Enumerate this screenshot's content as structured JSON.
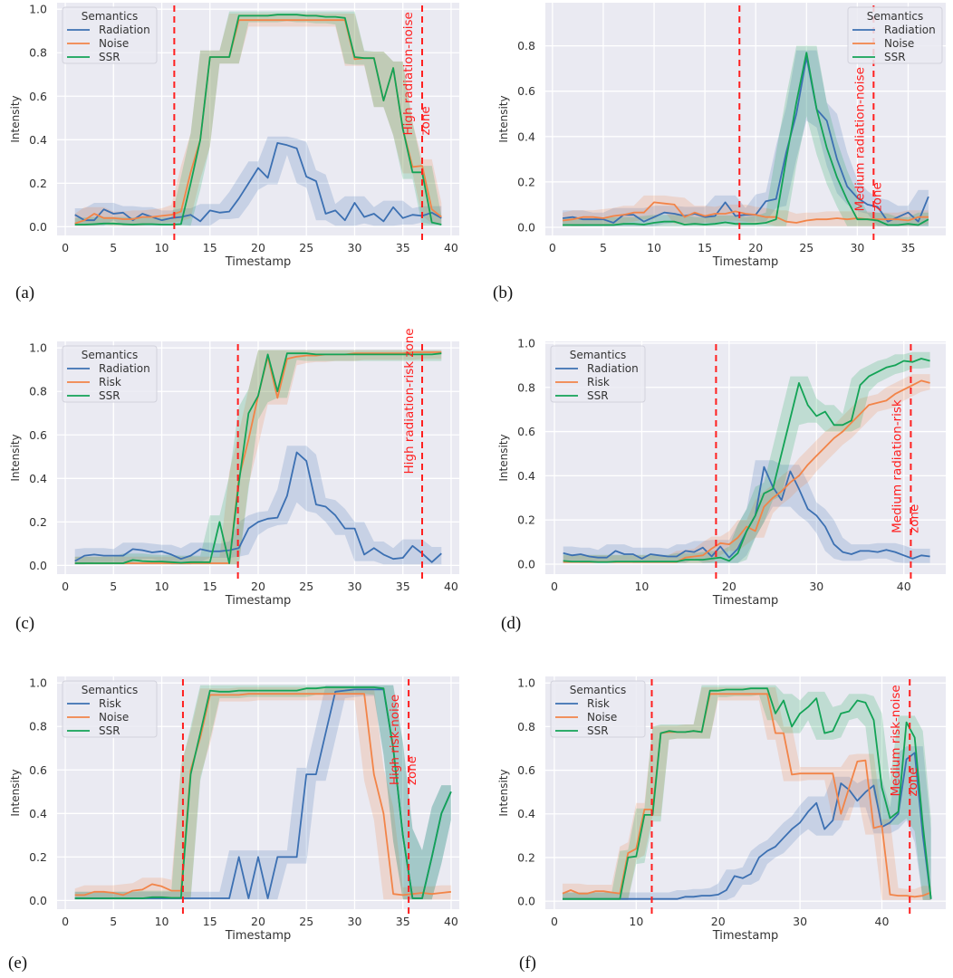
{
  "chart_data": [
    {
      "type": "line",
      "caption": "(a)",
      "xlabel": "Timestamp",
      "ylabel": "Intensity",
      "legend_title": "Semantics",
      "legend_position": "top-left",
      "xlim": [
        -0.85,
        40.85
      ],
      "ylim": [
        -0.04,
        1.03
      ],
      "xticks": [
        0,
        5,
        10,
        15,
        20,
        25,
        30,
        35,
        40
      ],
      "yticks": [
        "0.0",
        "0.2",
        "0.4",
        "0.6",
        "0.8",
        "1.0"
      ],
      "grid": true,
      "vlines": [
        11.3,
        37
      ],
      "zone_label": [
        "High radiation-noise",
        "zone"
      ],
      "zone_label_y": 0.42,
      "x_start": 1,
      "series": [
        {
          "name": "Radiation",
          "values": [
            0.055,
            0.03,
            0.03,
            0.08,
            0.06,
            0.065,
            0.03,
            0.06,
            0.045,
            0.03,
            0.04,
            0.045,
            0.055,
            0.025,
            0.075,
            0.065,
            0.07,
            0.13,
            0.2,
            0.27,
            0.225,
            0.385,
            0.375,
            0.36,
            0.23,
            0.21,
            0.06,
            0.075,
            0.03,
            0.11,
            0.045,
            0.06,
            0.025,
            0.09,
            0.04,
            0.055,
            0.05,
            0.065,
            0.04
          ]
        },
        {
          "name": "Noise",
          "values": [
            0.015,
            0.03,
            0.06,
            0.04,
            0.04,
            0.035,
            0.035,
            0.045,
            0.045,
            0.05,
            0.055,
            0.07,
            0.25,
            0.4,
            0.78,
            0.78,
            0.78,
            0.95,
            0.95,
            0.95,
            0.95,
            0.95,
            0.95,
            0.95,
            0.95,
            0.95,
            0.95,
            0.95,
            0.95,
            0.77,
            0.775,
            0.775,
            0.58,
            0.73,
            0.45,
            0.275,
            0.28,
            0.08,
            0.045
          ]
        },
        {
          "name": "SSR",
          "values": [
            0.01,
            0.01,
            0.012,
            0.015,
            0.015,
            0.012,
            0.01,
            0.012,
            0.012,
            0.01,
            0.01,
            0.012,
            0.2,
            0.4,
            0.78,
            0.78,
            0.78,
            0.97,
            0.97,
            0.97,
            0.97,
            0.975,
            0.975,
            0.975,
            0.97,
            0.97,
            0.965,
            0.965,
            0.96,
            0.78,
            0.775,
            0.775,
            0.58,
            0.73,
            0.45,
            0.25,
            0.25,
            0.02,
            0.01
          ]
        }
      ]
    },
    {
      "type": "line",
      "caption": "(b)",
      "xlabel": "Timestamp",
      "ylabel": "Intensity",
      "legend_title": "Semantics",
      "legend_position": "top-right",
      "xlim": [
        -0.7,
        38.7
      ],
      "ylim": [
        -0.036,
        0.99
      ],
      "xticks": [
        0,
        5,
        10,
        15,
        20,
        25,
        30,
        35
      ],
      "yticks": [
        "0.0",
        "0.2",
        "0.4",
        "0.6",
        "0.8"
      ],
      "grid": true,
      "vlines": [
        18.4,
        31.6
      ],
      "zone_label": [
        "Medium radiation-noise",
        "zone"
      ],
      "zone_label_y": 0.07,
      "x_start": 1,
      "series": [
        {
          "name": "Radiation",
          "values": [
            0.04,
            0.045,
            0.035,
            0.035,
            0.035,
            0.02,
            0.055,
            0.055,
            0.025,
            0.045,
            0.065,
            0.06,
            0.05,
            0.06,
            0.045,
            0.05,
            0.11,
            0.05,
            0.055,
            0.055,
            0.115,
            0.125,
            0.33,
            0.5,
            0.75,
            0.52,
            0.47,
            0.3,
            0.18,
            0.13,
            0.1,
            0.09,
            0.025,
            0.045,
            0.065,
            0.025,
            0.135
          ]
        },
        {
          "name": "Noise",
          "values": [
            0.03,
            0.035,
            0.045,
            0.045,
            0.04,
            0.05,
            0.055,
            0.065,
            0.065,
            0.11,
            0.105,
            0.1,
            0.045,
            0.065,
            0.05,
            0.06,
            0.06,
            0.07,
            0.06,
            0.055,
            0.045,
            0.045,
            0.025,
            0.02,
            0.03,
            0.035,
            0.035,
            0.04,
            0.035,
            0.04,
            0.035,
            0.035,
            0.035,
            0.035,
            0.03,
            0.045,
            0.045
          ]
        },
        {
          "name": "SSR",
          "values": [
            0.01,
            0.01,
            0.01,
            0.01,
            0.01,
            0.01,
            0.015,
            0.015,
            0.012,
            0.02,
            0.025,
            0.025,
            0.012,
            0.015,
            0.012,
            0.015,
            0.022,
            0.015,
            0.015,
            0.015,
            0.02,
            0.035,
            0.3,
            0.55,
            0.77,
            0.52,
            0.35,
            0.22,
            0.12,
            0.035,
            0.035,
            0.03,
            0.01,
            0.01,
            0.015,
            0.01,
            0.035
          ]
        }
      ]
    },
    {
      "type": "line",
      "caption": "(c)",
      "xlabel": "Timestamp",
      "ylabel": "Intensity",
      "legend_title": "Semantics",
      "legend_position": "top-left",
      "xlim": [
        -0.85,
        40.85
      ],
      "ylim": [
        -0.04,
        1.03
      ],
      "xticks": [
        0,
        5,
        10,
        15,
        20,
        25,
        30,
        35,
        40
      ],
      "yticks": [
        "0.0",
        "0.2",
        "0.4",
        "0.6",
        "0.8",
        "1.0"
      ],
      "grid": true,
      "vlines": [
        17.9,
        37
      ],
      "zone_label": [
        "High radiation-risk zone"
      ],
      "zone_label_y": 0.42,
      "x_start": 1,
      "series": [
        {
          "name": "Radiation",
          "values": [
            0.02,
            0.045,
            0.05,
            0.045,
            0.045,
            0.045,
            0.075,
            0.07,
            0.06,
            0.065,
            0.05,
            0.03,
            0.045,
            0.075,
            0.065,
            0.065,
            0.07,
            0.08,
            0.17,
            0.2,
            0.215,
            0.22,
            0.32,
            0.52,
            0.48,
            0.28,
            0.27,
            0.23,
            0.17,
            0.17,
            0.05,
            0.08,
            0.05,
            0.03,
            0.035,
            0.09,
            0.055,
            0.015,
            0.055
          ]
        },
        {
          "name": "Risk",
          "values": [
            0.01,
            0.01,
            0.01,
            0.01,
            0.01,
            0.01,
            0.01,
            0.01,
            0.01,
            0.01,
            0.01,
            0.01,
            0.01,
            0.01,
            0.01,
            0.01,
            0.01,
            0.4,
            0.58,
            0.78,
            0.96,
            0.77,
            0.95,
            0.96,
            0.965,
            0.965,
            0.97,
            0.97,
            0.97,
            0.975,
            0.975,
            0.975,
            0.975,
            0.975,
            0.975,
            0.98,
            0.98,
            0.98,
            0.98
          ]
        },
        {
          "name": "SSR",
          "values": [
            0.01,
            0.01,
            0.01,
            0.01,
            0.01,
            0.01,
            0.025,
            0.02,
            0.018,
            0.018,
            0.015,
            0.012,
            0.015,
            0.015,
            0.015,
            0.2,
            0.01,
            0.38,
            0.7,
            0.78,
            0.97,
            0.8,
            0.975,
            0.975,
            0.975,
            0.97,
            0.97,
            0.97,
            0.97,
            0.97,
            0.97,
            0.97,
            0.97,
            0.97,
            0.97,
            0.97,
            0.97,
            0.97,
            0.975
          ]
        }
      ]
    },
    {
      "type": "line",
      "caption": "(d)",
      "xlabel": "Timestamp",
      "ylabel": "Intensity",
      "legend_title": "Semantics",
      "legend_position": "top-left",
      "xlim": [
        -1.04,
        44.8
      ],
      "ylim": [
        -0.045,
        1.008
      ],
      "xticks": [
        0,
        10,
        20,
        30,
        40
      ],
      "yticks": [
        "0.0",
        "0.2",
        "0.4",
        "0.6",
        "0.8",
        "1.0"
      ],
      "grid": true,
      "vlines": [
        18.5,
        40.8
      ],
      "zone_label": [
        "Medium radiation-risk",
        "zone"
      ],
      "zone_label_y": 0.14,
      "x_start": 1,
      "series": [
        {
          "name": "Radiation",
          "values": [
            0.05,
            0.04,
            0.045,
            0.035,
            0.03,
            0.03,
            0.06,
            0.045,
            0.045,
            0.025,
            0.045,
            0.04,
            0.035,
            0.035,
            0.06,
            0.055,
            0.075,
            0.035,
            0.08,
            0.03,
            0.07,
            0.15,
            0.22,
            0.44,
            0.35,
            0.29,
            0.42,
            0.34,
            0.25,
            0.22,
            0.17,
            0.09,
            0.055,
            0.045,
            0.06,
            0.06,
            0.055,
            0.065,
            0.055,
            0.04,
            0.025,
            0.04,
            0.035
          ]
        },
        {
          "name": "Risk",
          "values": [
            0.01,
            0.01,
            0.01,
            0.01,
            0.01,
            0.01,
            0.01,
            0.01,
            0.01,
            0.01,
            0.01,
            0.01,
            0.01,
            0.01,
            0.03,
            0.035,
            0.04,
            0.07,
            0.095,
            0.09,
            0.12,
            0.17,
            0.15,
            0.26,
            0.3,
            0.33,
            0.37,
            0.4,
            0.45,
            0.49,
            0.53,
            0.57,
            0.6,
            0.64,
            0.68,
            0.72,
            0.73,
            0.74,
            0.77,
            0.79,
            0.81,
            0.83,
            0.82
          ]
        },
        {
          "name": "SSR",
          "values": [
            0.015,
            0.012,
            0.012,
            0.012,
            0.01,
            0.01,
            0.012,
            0.012,
            0.012,
            0.012,
            0.012,
            0.012,
            0.012,
            0.012,
            0.02,
            0.02,
            0.02,
            0.025,
            0.03,
            0.015,
            0.05,
            0.15,
            0.22,
            0.32,
            0.34,
            0.5,
            0.66,
            0.82,
            0.72,
            0.67,
            0.69,
            0.63,
            0.63,
            0.65,
            0.81,
            0.85,
            0.87,
            0.89,
            0.9,
            0.92,
            0.915,
            0.93,
            0.92
          ]
        }
      ]
    },
    {
      "type": "line",
      "caption": "(e)",
      "xlabel": "Timestamp",
      "ylabel": "Intensity",
      "legend_title": "Semantics",
      "legend_position": "top-left",
      "xlim": [
        -0.85,
        40.85
      ],
      "ylim": [
        -0.04,
        1.03
      ],
      "xticks": [
        0,
        5,
        10,
        15,
        20,
        25,
        30,
        35,
        40
      ],
      "yticks": [
        "0.0",
        "0.2",
        "0.4",
        "0.6",
        "0.8",
        "1.0"
      ],
      "grid": true,
      "vlines": [
        12.2,
        35.6
      ],
      "zone_label": [
        "High risk-noise",
        "zone"
      ],
      "zone_label_y": 0.53,
      "x_start": 1,
      "series": [
        {
          "name": "Risk",
          "values": [
            0.01,
            0.01,
            0.01,
            0.01,
            0.01,
            0.01,
            0.01,
            0.01,
            0.01,
            0.01,
            0.01,
            0.01,
            0.01,
            0.01,
            0.01,
            0.01,
            0.01,
            0.2,
            0.01,
            0.2,
            0.01,
            0.2,
            0.2,
            0.2,
            0.58,
            0.58,
            0.77,
            0.96,
            0.965,
            0.97,
            0.97,
            0.97,
            0.97,
            0.7,
            0.3,
            0.01,
            0.01,
            0.2,
            0.4,
            0.5
          ]
        },
        {
          "name": "Noise",
          "values": [
            0.025,
            0.025,
            0.04,
            0.04,
            0.035,
            0.025,
            0.045,
            0.05,
            0.075,
            0.065,
            0.045,
            0.045,
            0.6,
            0.75,
            0.945,
            0.945,
            0.945,
            0.945,
            0.95,
            0.95,
            0.95,
            0.95,
            0.95,
            0.95,
            0.95,
            0.95,
            0.95,
            0.95,
            0.95,
            0.95,
            0.95,
            0.58,
            0.4,
            0.03,
            0.025,
            0.03,
            0.035,
            0.03,
            0.035,
            0.04
          ]
        },
        {
          "name": "SSR",
          "values": [
            0.01,
            0.01,
            0.01,
            0.01,
            0.01,
            0.01,
            0.01,
            0.01,
            0.015,
            0.015,
            0.012,
            0.012,
            0.58,
            0.77,
            0.965,
            0.96,
            0.96,
            0.965,
            0.965,
            0.965,
            0.965,
            0.965,
            0.965,
            0.965,
            0.975,
            0.975,
            0.98,
            0.98,
            0.98,
            0.98,
            0.98,
            0.98,
            0.975,
            0.7,
            0.3,
            0.01,
            0.01,
            0.2,
            0.4,
            0.5
          ]
        }
      ]
    },
    {
      "type": "line",
      "caption": "(f)",
      "xlabel": "Timestamp",
      "ylabel": "Intensity",
      "legend_title": "Semantics",
      "legend_position": "top-left",
      "xlim": [
        -1.1,
        47.8
      ],
      "ylim": [
        -0.037,
        1.03
      ],
      "xticks": [
        0,
        10,
        20,
        30,
        40
      ],
      "yticks": [
        "0.0",
        "0.2",
        "0.4",
        "0.6",
        "0.8",
        "1.0"
      ],
      "grid": true,
      "vlines": [
        11.9,
        43.4
      ],
      "zone_label": [
        "Medium risk-noise",
        "zone"
      ],
      "zone_label_y": 0.48,
      "x_start": 1,
      "series": [
        {
          "name": "Risk",
          "values": [
            0.01,
            0.01,
            0.01,
            0.01,
            0.01,
            0.01,
            0.01,
            0.01,
            0.01,
            0.01,
            0.01,
            0.01,
            0.01,
            0.01,
            0.01,
            0.02,
            0.02,
            0.025,
            0.025,
            0.03,
            0.05,
            0.115,
            0.105,
            0.125,
            0.2,
            0.23,
            0.25,
            0.29,
            0.33,
            0.36,
            0.41,
            0.45,
            0.33,
            0.37,
            0.54,
            0.51,
            0.46,
            0.5,
            0.53,
            0.34,
            0.36,
            0.4,
            0.65,
            0.68,
            0.3,
            0.01
          ]
        },
        {
          "name": "Noise",
          "values": [
            0.035,
            0.05,
            0.035,
            0.035,
            0.045,
            0.045,
            0.04,
            0.035,
            0.22,
            0.24,
            0.42,
            0.42,
            0.77,
            0.775,
            0.775,
            0.775,
            0.78,
            0.775,
            0.95,
            0.95,
            0.95,
            0.95,
            0.95,
            0.95,
            0.95,
            0.95,
            0.77,
            0.77,
            0.58,
            0.585,
            0.585,
            0.585,
            0.585,
            0.585,
            0.4,
            0.52,
            0.64,
            0.645,
            0.335,
            0.345,
            0.03,
            0.025,
            0.025,
            0.02,
            0.025,
            0.04
          ]
        },
        {
          "name": "SSR",
          "values": [
            0.01,
            0.01,
            0.01,
            0.01,
            0.01,
            0.01,
            0.01,
            0.01,
            0.2,
            0.205,
            0.395,
            0.395,
            0.77,
            0.78,
            0.775,
            0.775,
            0.78,
            0.775,
            0.965,
            0.965,
            0.97,
            0.97,
            0.97,
            0.975,
            0.975,
            0.975,
            0.86,
            0.92,
            0.8,
            0.86,
            0.89,
            0.93,
            0.77,
            0.78,
            0.86,
            0.87,
            0.92,
            0.91,
            0.83,
            0.52,
            0.38,
            0.41,
            0.82,
            0.75,
            0.35,
            0.01
          ]
        }
      ]
    }
  ],
  "colors": {
    "series": [
      "#3c70b2",
      "#f28448",
      "#13a356"
    ],
    "background": "#eaeaf2",
    "grid": "#ffffff",
    "marker_line": "#ff1f1f",
    "text": "#333333"
  }
}
